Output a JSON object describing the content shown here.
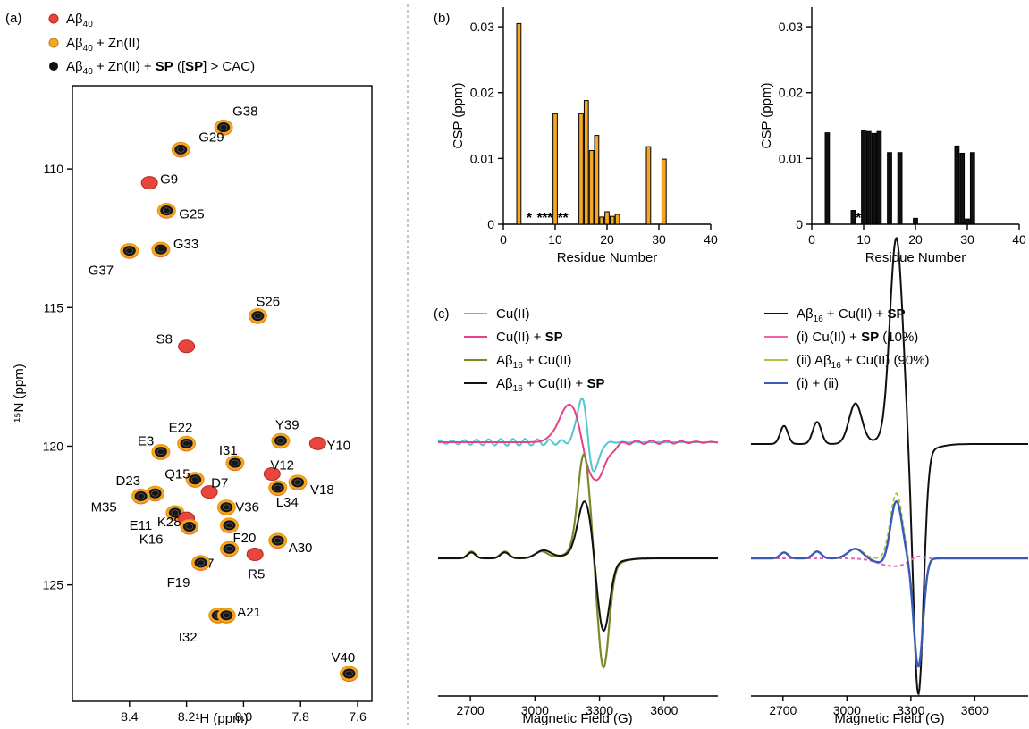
{
  "panels": {
    "a": "(a)",
    "b": "(b)",
    "c": "(c)"
  },
  "chart_data": [
    {
      "panel": "a",
      "type": "scatter",
      "xlabel": "¹H (ppm)",
      "ylabel": "¹⁵N (ppm)",
      "xlim": [
        8.6,
        7.55
      ],
      "ylim": [
        107.0,
        129.2
      ],
      "x_reversed": true,
      "y_reversed": true,
      "xticks": [
        8.4,
        8.2,
        8.0,
        7.8,
        7.6
      ],
      "yticks": [
        110,
        115,
        120,
        125
      ],
      "legend": [
        {
          "label": "Aβ40",
          "color": "#e8453c"
        },
        {
          "label": "Aβ40 + Zn(II)",
          "color": "#f5a623"
        },
        {
          "label": "Aβ40 + Zn(II) + SP ([SP] > CAC)",
          "color": "#111111"
        }
      ],
      "peaks": [
        {
          "label": "G38",
          "h": 8.07,
          "n": 108.5
        },
        {
          "label": "G29",
          "h": 8.22,
          "n": 109.3
        },
        {
          "label": "G9",
          "h": 8.33,
          "n": 110.5,
          "red_only": true
        },
        {
          "label": "G25",
          "h": 8.27,
          "n": 111.5
        },
        {
          "label": "G33",
          "h": 8.29,
          "n": 112.9
        },
        {
          "label": "G37",
          "h": 8.4,
          "n": 112.95
        },
        {
          "label": "S26",
          "h": 7.95,
          "n": 115.3
        },
        {
          "label": "S8",
          "h": 8.2,
          "n": 116.4,
          "red_only": true
        },
        {
          "label": "E3",
          "h": 8.29,
          "n": 120.2
        },
        {
          "label": "E22",
          "h": 8.2,
          "n": 119.9
        },
        {
          "label": "Y39",
          "h": 7.87,
          "n": 119.8
        },
        {
          "label": "Y10",
          "h": 7.74,
          "n": 119.9,
          "red_only": true
        },
        {
          "label": "I31",
          "h": 8.03,
          "n": 120.6
        },
        {
          "label": "V12",
          "h": 7.9,
          "n": 121.0,
          "red_only": true
        },
        {
          "label": "Q15",
          "h": 8.17,
          "n": 121.2
        },
        {
          "label": "V18",
          "h": 7.81,
          "n": 121.3
        },
        {
          "label": "D7",
          "h": 8.12,
          "n": 121.65,
          "red_only": true
        },
        {
          "label": "L34",
          "h": 7.88,
          "n": 121.5
        },
        {
          "label": "D23",
          "h": 8.31,
          "n": 121.7
        },
        {
          "label": "M35",
          "h": 8.36,
          "n": 121.8
        },
        {
          "label": "V36",
          "h": 8.06,
          "n": 122.2
        },
        {
          "label": "K28",
          "h": 8.24,
          "n": 122.4
        },
        {
          "label": "E11",
          "h": 8.2,
          "n": 122.6,
          "red_only": true
        },
        {
          "label": "F20",
          "h": 8.05,
          "n": 122.85
        },
        {
          "label": "K16",
          "h": 8.19,
          "n": 122.9
        },
        {
          "label": "A30",
          "h": 7.88,
          "n": 123.4
        },
        {
          "label": "L17",
          "h": 8.05,
          "n": 123.7
        },
        {
          "label": "R5",
          "h": 7.96,
          "n": 123.9,
          "red_only": true
        },
        {
          "label": "F19",
          "h": 8.15,
          "n": 124.2
        },
        {
          "label": "I32",
          "h": 8.09,
          "n": 126.1
        },
        {
          "label": "A21",
          "h": 8.06,
          "n": 126.1
        },
        {
          "label": "V40",
          "h": 7.63,
          "n": 128.2
        }
      ]
    },
    {
      "panel": "b-left",
      "type": "bar",
      "xlabel": "Residue Number",
      "ylabel": "CSP (ppm)",
      "xlim": [
        0,
        40
      ],
      "ylim": [
        0,
        0.033
      ],
      "xticks": [
        0,
        10,
        20,
        30,
        40
      ],
      "yticks": [
        0,
        0.01,
        0.02,
        0.03
      ],
      "color": "#f5a623",
      "residues": [
        3,
        10,
        15,
        16,
        17,
        18,
        19,
        20,
        21,
        22,
        28,
        31
      ],
      "values": [
        0.0305,
        0.0168,
        0.0168,
        0.0188,
        0.0112,
        0.0135,
        0.0011,
        0.0019,
        0.0012,
        0.0015,
        0.0118,
        0.0099
      ],
      "star_residues": [
        5,
        7,
        8,
        9,
        11,
        12
      ],
      "star_label": "*"
    },
    {
      "panel": "b-right",
      "type": "bar",
      "xlabel": "Residue Number",
      "ylabel": "CSP (ppm)",
      "xlim": [
        0,
        40
      ],
      "ylim": [
        0,
        0.033
      ],
      "xticks": [
        0,
        10,
        20,
        30,
        40
      ],
      "yticks": [
        0,
        0.01,
        0.02,
        0.03
      ],
      "color": "#111111",
      "residues": [
        3,
        8,
        10,
        11,
        12,
        13,
        15,
        17,
        20,
        28,
        29,
        30,
        31
      ],
      "values": [
        0.0139,
        0.0021,
        0.0142,
        0.0141,
        0.0138,
        0.0141,
        0.0109,
        0.0109,
        0.0009,
        0.0119,
        0.0108,
        0.0008,
        0.0109
      ],
      "star_residues": [
        9
      ],
      "star_label": "*"
    },
    {
      "panel": "c-left",
      "type": "line",
      "xlabel": "Magnetic Field (G)",
      "xlim": [
        2550,
        3850
      ],
      "xticks": [
        2700,
        3000,
        3300,
        3600
      ],
      "legend": [
        {
          "label": "Cu(II)",
          "color": "#4fc8d2"
        },
        {
          "label": "Cu(II) + SP",
          "color": "#e8408a"
        },
        {
          "label": "Aβ16 + Cu(II)",
          "color": "#7a8a2a"
        },
        {
          "label": "Aβ16 + Cu(II) + SP",
          "color": "#111111"
        }
      ]
    },
    {
      "panel": "c-right",
      "type": "line",
      "xlabel": "Magnetic Field (G)",
      "xlim": [
        2550,
        3850
      ],
      "xticks": [
        2700,
        3000,
        3300,
        3600
      ],
      "legend": [
        {
          "label": "Aβ16 + Cu(II) + SP",
          "color": "#111111"
        },
        {
          "label": "(i) Cu(II) + SP (10%)",
          "color": "#f060b0"
        },
        {
          "label": "(ii) Aβ16 + Cu(II) (90%)",
          "color": "#a8c83a"
        },
        {
          "label": "(i) + (ii)",
          "color": "#3a5ab8"
        }
      ]
    }
  ]
}
